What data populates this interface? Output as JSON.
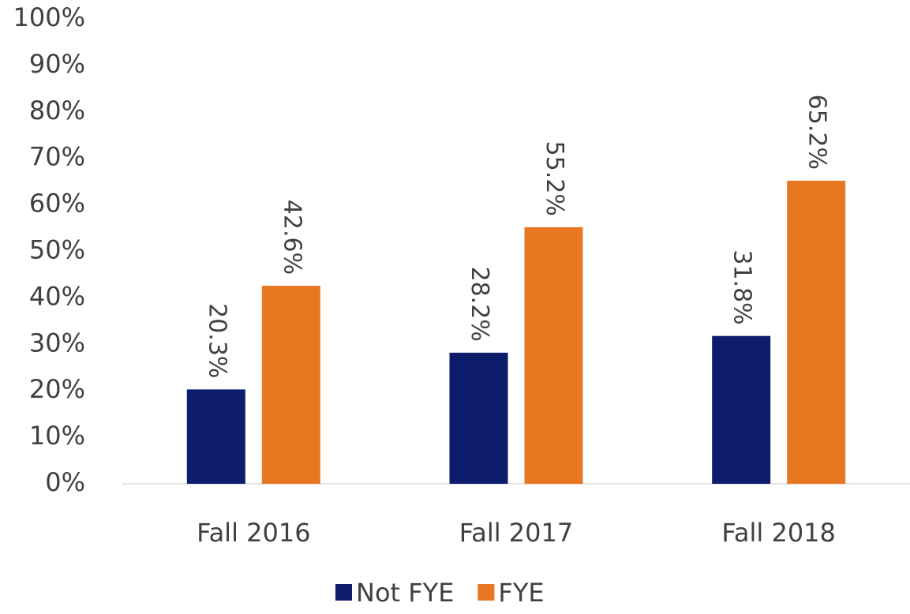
{
  "chart_data": {
    "type": "bar",
    "categories": [
      "Fall 2016",
      "Fall 2017",
      "Fall 2018"
    ],
    "series": [
      {
        "name": "Not FYE",
        "color": "#0d1c6b",
        "values": [
          20.3,
          28.2,
          31.8
        ],
        "value_labels": [
          "20.3%",
          "28.2%",
          "31.8%"
        ]
      },
      {
        "name": "FYE",
        "color": "#e87722",
        "values": [
          42.6,
          55.2,
          65.2
        ],
        "value_labels": [
          "42.6%",
          "55.2%",
          "65.2%"
        ]
      }
    ],
    "ylim": [
      0,
      100
    ],
    "yticks": [
      {
        "value": 0,
        "label": "0%"
      },
      {
        "value": 10,
        "label": "10%"
      },
      {
        "value": 20,
        "label": "20%"
      },
      {
        "value": 30,
        "label": "30%"
      },
      {
        "value": 40,
        "label": "40%"
      },
      {
        "value": 50,
        "label": "50%"
      },
      {
        "value": 60,
        "label": "60%"
      },
      {
        "value": 70,
        "label": "70%"
      },
      {
        "value": 80,
        "label": "80%"
      },
      {
        "value": 90,
        "label": "90%"
      },
      {
        "value": 100,
        "label": "100%"
      }
    ],
    "grid": false,
    "legend": "bottom"
  }
}
